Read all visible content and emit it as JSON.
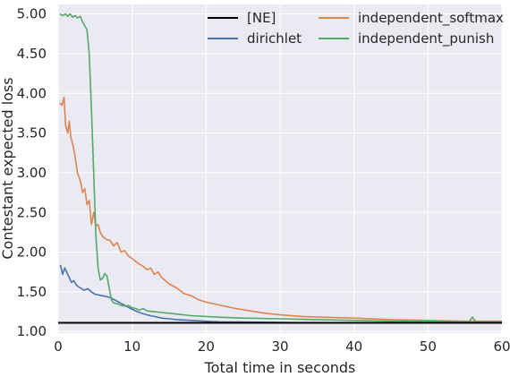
{
  "chart_data": {
    "type": "line",
    "xlabel": "Total time in seconds",
    "ylabel": "Contestant expected loss",
    "xlim": [
      0,
      60
    ],
    "ylim": [
      0.98,
      5.12
    ],
    "xticks": [
      0,
      10,
      20,
      30,
      40,
      50,
      60
    ],
    "xtick_labels": [
      "0",
      "10",
      "20",
      "30",
      "40",
      "50",
      "60"
    ],
    "yticks": [
      1.0,
      1.5,
      2.0,
      2.5,
      3.0,
      3.5,
      4.0,
      4.5,
      5.0
    ],
    "ytick_labels": [
      "1.00",
      "1.50",
      "2.00",
      "2.50",
      "3.00",
      "3.50",
      "4.00",
      "4.50",
      "5.00"
    ],
    "grid": true,
    "legend_position": "top-right",
    "series": [
      {
        "name": "[NE]",
        "color": "#000000",
        "x": [
          0,
          60
        ],
        "y": [
          1.11,
          1.11
        ]
      },
      {
        "name": "dirichlet",
        "color": "#4C72B0",
        "x": [
          0.3,
          0.6,
          0.9,
          1.2,
          1.5,
          1.8,
          2.1,
          2.5,
          3.0,
          3.5,
          4.0,
          4.5,
          5.0,
          6.0,
          7.0,
          8.0,
          9.0,
          10.0,
          11.0,
          12.0,
          13.0,
          14.0,
          15.0,
          16.0,
          18.0,
          20.0,
          22.0,
          25.0,
          30.0,
          35.0,
          40.0,
          50.0,
          60.0
        ],
        "y": [
          1.84,
          1.72,
          1.8,
          1.74,
          1.68,
          1.62,
          1.64,
          1.58,
          1.55,
          1.52,
          1.54,
          1.5,
          1.47,
          1.45,
          1.43,
          1.38,
          1.33,
          1.28,
          1.24,
          1.21,
          1.19,
          1.17,
          1.16,
          1.15,
          1.14,
          1.13,
          1.12,
          1.12,
          1.115,
          1.11,
          1.11,
          1.11,
          1.11
        ]
      },
      {
        "name": "independent_softmax",
        "color": "#DD8452",
        "x": [
          0.2,
          0.5,
          0.8,
          1.0,
          1.3,
          1.5,
          1.7,
          2.0,
          2.3,
          2.6,
          3.0,
          3.3,
          3.6,
          3.9,
          4.2,
          4.5,
          4.8,
          5.1,
          5.4,
          5.7,
          6.0,
          6.5,
          7.0,
          7.5,
          8.0,
          8.5,
          9.0,
          9.5,
          10.0,
          10.5,
          11.0,
          11.5,
          12.0,
          12.5,
          13.0,
          13.5,
          14.0,
          15.0,
          16.0,
          17.0,
          18.0,
          19.0,
          20.0,
          22.0,
          24.0,
          26.0,
          28.0,
          30.0,
          33.0,
          36.0,
          40.0,
          45.0,
          50.0,
          55.0,
          60.0
        ],
        "y": [
          3.88,
          3.85,
          3.95,
          3.6,
          3.5,
          3.65,
          3.45,
          3.35,
          3.2,
          3.0,
          2.9,
          2.75,
          2.8,
          2.6,
          2.65,
          2.35,
          2.5,
          2.33,
          2.35,
          2.25,
          2.2,
          2.16,
          2.15,
          2.08,
          2.12,
          2.0,
          2.02,
          1.95,
          1.92,
          1.88,
          1.85,
          1.82,
          1.78,
          1.8,
          1.72,
          1.75,
          1.68,
          1.6,
          1.55,
          1.48,
          1.45,
          1.4,
          1.37,
          1.33,
          1.29,
          1.26,
          1.23,
          1.21,
          1.19,
          1.18,
          1.17,
          1.15,
          1.14,
          1.13,
          1.13
        ]
      },
      {
        "name": "independent_punish",
        "color": "#55A868",
        "x": [
          0.2,
          0.6,
          1.0,
          1.3,
          1.6,
          2.0,
          2.3,
          2.6,
          3.0,
          3.3,
          3.6,
          3.9,
          4.2,
          4.5,
          4.8,
          5.1,
          5.4,
          5.7,
          6.0,
          6.3,
          6.6,
          6.9,
          7.2,
          7.5,
          8.0,
          8.5,
          9.0,
          9.5,
          10.0,
          10.5,
          11.0,
          11.5,
          12.0,
          13.0,
          14.0,
          15.0,
          16.0,
          18.0,
          20.0,
          22.0,
          25.0,
          30.0,
          35.0,
          40.0,
          45.0,
          50.0,
          55.5,
          56.0,
          56.5,
          58.0,
          60.0
        ],
        "y": [
          5.0,
          4.98,
          5.0,
          4.97,
          5.0,
          4.96,
          4.98,
          4.95,
          4.97,
          4.9,
          4.85,
          4.8,
          4.5,
          3.8,
          3.0,
          2.2,
          1.8,
          1.65,
          1.67,
          1.73,
          1.7,
          1.55,
          1.4,
          1.36,
          1.35,
          1.33,
          1.32,
          1.33,
          1.3,
          1.29,
          1.27,
          1.29,
          1.26,
          1.25,
          1.24,
          1.23,
          1.22,
          1.2,
          1.19,
          1.18,
          1.17,
          1.16,
          1.15,
          1.14,
          1.13,
          1.13,
          1.12,
          1.18,
          1.12,
          1.12,
          1.12
        ]
      }
    ]
  }
}
